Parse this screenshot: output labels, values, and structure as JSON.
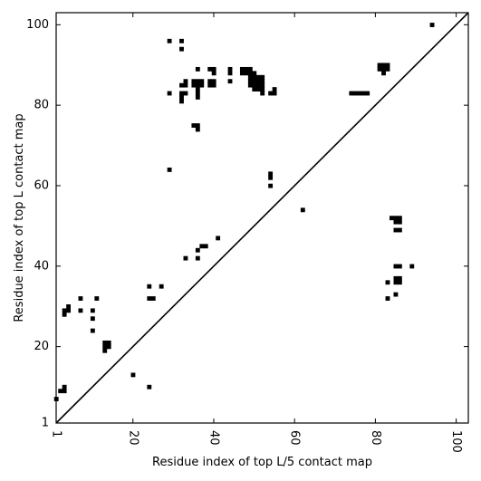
{
  "chart_data": {
    "type": "heatmap",
    "xlabel": "Residue index of top L/5 contact map",
    "ylabel": "Residue index of top L contact map",
    "xlim": [
      1,
      103
    ],
    "ylim": [
      1,
      103
    ],
    "xticks": [
      1,
      20,
      40,
      60,
      80,
      100
    ],
    "yticks": [
      1,
      20,
      40,
      60,
      80,
      100
    ],
    "xtick_labels": [
      "1",
      "20",
      "40",
      "60",
      "80",
      "100"
    ],
    "ytick_labels": [
      "1",
      "20",
      "40",
      "60",
      "80",
      "100"
    ],
    "diagonal": true,
    "colors": {
      "contact": "#000000",
      "background": "#ffffff"
    },
    "cells": [
      [
        29,
        96
      ],
      [
        32,
        96
      ],
      [
        32,
        94
      ],
      [
        94,
        100
      ],
      [
        36,
        89
      ],
      [
        39,
        89
      ],
      [
        40,
        89
      ],
      [
        40,
        88
      ],
      [
        44,
        89
      ],
      [
        44,
        88
      ],
      [
        47,
        89
      ],
      [
        48,
        89
      ],
      [
        49,
        89
      ],
      [
        47,
        88
      ],
      [
        48,
        88
      ],
      [
        49,
        88
      ],
      [
        50,
        88
      ],
      [
        81,
        90
      ],
      [
        82,
        90
      ],
      [
        83,
        90
      ],
      [
        81,
        89
      ],
      [
        82,
        89
      ],
      [
        83,
        89
      ],
      [
        82,
        88
      ],
      [
        33,
        86
      ],
      [
        35,
        86
      ],
      [
        36,
        86
      ],
      [
        37,
        86
      ],
      [
        39,
        86
      ],
      [
        40,
        86
      ],
      [
        44,
        86
      ],
      [
        49,
        87
      ],
      [
        50,
        87
      ],
      [
        51,
        87
      ],
      [
        52,
        87
      ],
      [
        49,
        86
      ],
      [
        50,
        86
      ],
      [
        51,
        86
      ],
      [
        52,
        86
      ],
      [
        32,
        85
      ],
      [
        33,
        85
      ],
      [
        35,
        85
      ],
      [
        36,
        85
      ],
      [
        37,
        85
      ],
      [
        39,
        85
      ],
      [
        40,
        85
      ],
      [
        49,
        85
      ],
      [
        50,
        85
      ],
      [
        51,
        85
      ],
      [
        52,
        85
      ],
      [
        36,
        84
      ],
      [
        50,
        84
      ],
      [
        51,
        84
      ],
      [
        52,
        84
      ],
      [
        55,
        84
      ],
      [
        29,
        83
      ],
      [
        32,
        83
      ],
      [
        33,
        83
      ],
      [
        36,
        83
      ],
      [
        52,
        83
      ],
      [
        54,
        83
      ],
      [
        55,
        83
      ],
      [
        74,
        83
      ],
      [
        75,
        83
      ],
      [
        76,
        83
      ],
      [
        77,
        83
      ],
      [
        78,
        83
      ],
      [
        32,
        82
      ],
      [
        36,
        82
      ],
      [
        32,
        81
      ],
      [
        35,
        75
      ],
      [
        36,
        75
      ],
      [
        36,
        74
      ],
      [
        29,
        64
      ],
      [
        54,
        63
      ],
      [
        54,
        62
      ],
      [
        54,
        60
      ],
      [
        62,
        54
      ],
      [
        84,
        52
      ],
      [
        85,
        52
      ],
      [
        86,
        52
      ],
      [
        85,
        51
      ],
      [
        86,
        51
      ],
      [
        85,
        49
      ],
      [
        86,
        49
      ],
      [
        41,
        47
      ],
      [
        37,
        45
      ],
      [
        38,
        45
      ],
      [
        36,
        44
      ],
      [
        33,
        42
      ],
      [
        36,
        42
      ],
      [
        85,
        40
      ],
      [
        86,
        40
      ],
      [
        89,
        40
      ],
      [
        85,
        37
      ],
      [
        86,
        37
      ],
      [
        83,
        36
      ],
      [
        85,
        36
      ],
      [
        86,
        36
      ],
      [
        24,
        35
      ],
      [
        27,
        35
      ],
      [
        85,
        33
      ],
      [
        24,
        32
      ],
      [
        25,
        32
      ],
      [
        83,
        32
      ],
      [
        7,
        32
      ],
      [
        11,
        32
      ],
      [
        4,
        30
      ],
      [
        3,
        29
      ],
      [
        4,
        29
      ],
      [
        7,
        29
      ],
      [
        10,
        29
      ],
      [
        3,
        28
      ],
      [
        10,
        27
      ],
      [
        10,
        24
      ],
      [
        13,
        21
      ],
      [
        14,
        21
      ],
      [
        13,
        20
      ],
      [
        14,
        20
      ],
      [
        13,
        19
      ],
      [
        20,
        13
      ],
      [
        3,
        10
      ],
      [
        24,
        10
      ],
      [
        2,
        9
      ],
      [
        3,
        9
      ],
      [
        1,
        7
      ]
    ]
  }
}
